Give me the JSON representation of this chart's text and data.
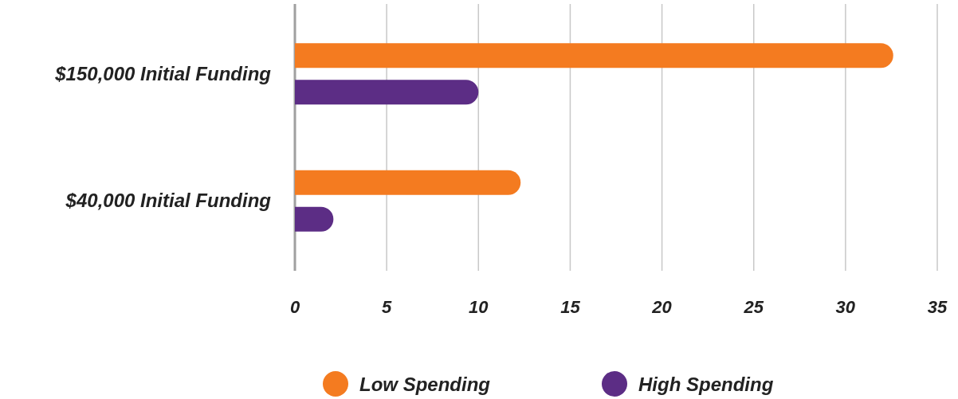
{
  "chart_data": {
    "type": "bar",
    "orientation": "horizontal",
    "categories": [
      "$150,000 Initial Funding",
      "$40,000 Initial Funding"
    ],
    "series": [
      {
        "name": "Low Spending",
        "color": "#f47b20",
        "values": [
          32.6,
          12.3
        ]
      },
      {
        "name": "High Spending",
        "color": "#5c2d85",
        "values": [
          10,
          2.1
        ]
      }
    ],
    "xlim": [
      0,
      35
    ],
    "xticks": [
      0,
      5,
      10,
      15,
      20,
      25,
      30,
      35
    ],
    "grid": "x",
    "legend": "bottom"
  }
}
